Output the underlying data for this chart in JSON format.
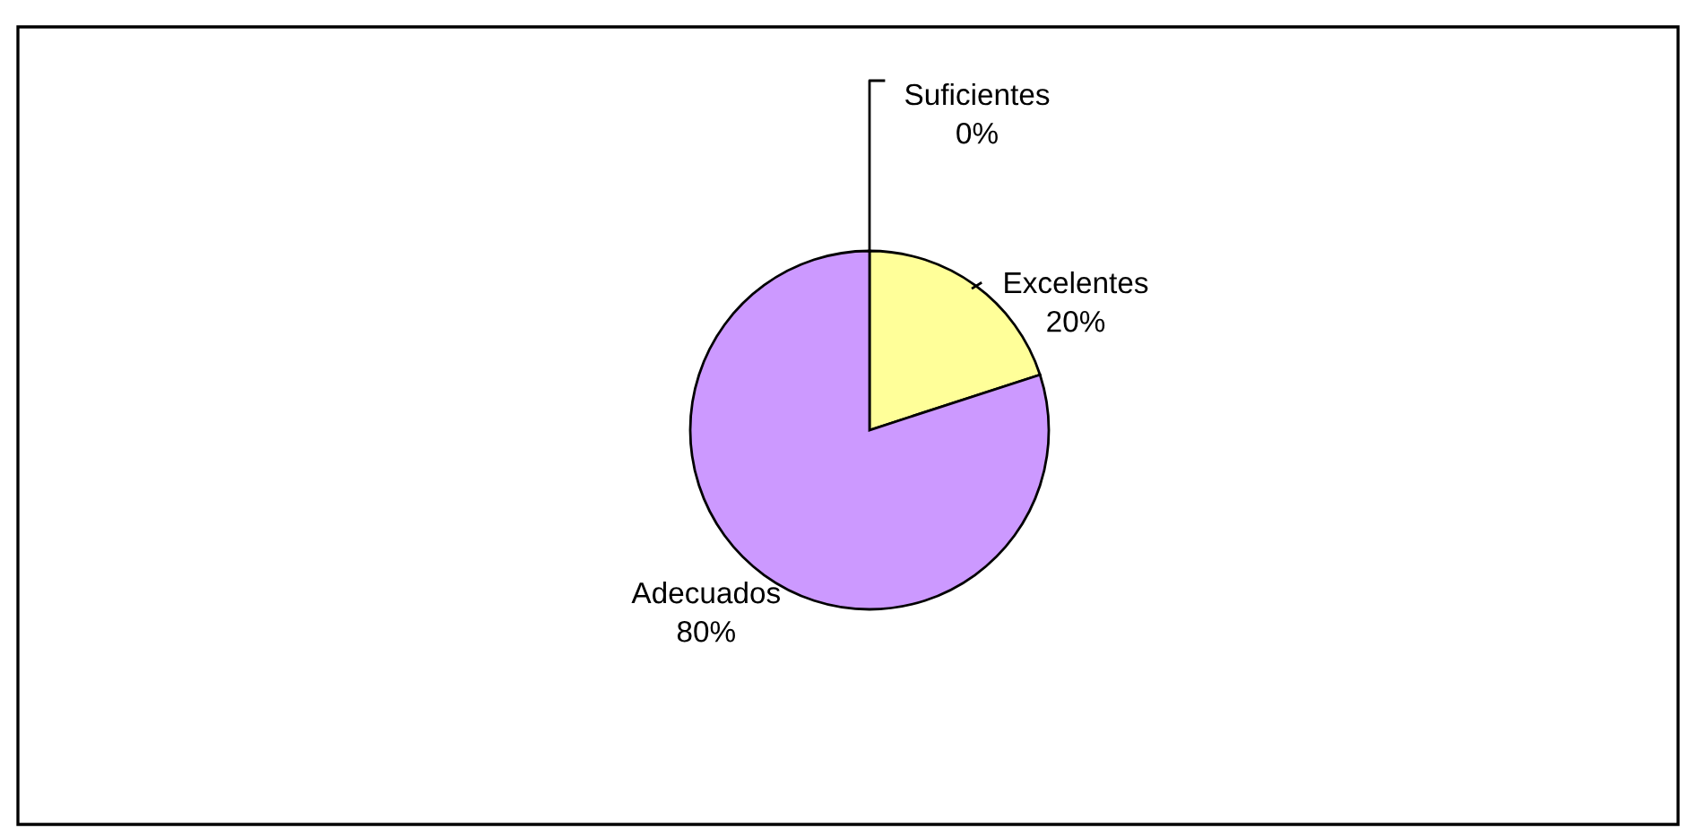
{
  "chart_data": {
    "type": "pie",
    "categories": [
      "Excelentes",
      "Adecuados",
      "Suficientes"
    ],
    "values": [
      20,
      80,
      0
    ],
    "colors": [
      "#ffff99",
      "#cc99ff",
      "#ffffff"
    ],
    "value_labels": [
      "20%",
      "80%",
      "0%"
    ]
  }
}
